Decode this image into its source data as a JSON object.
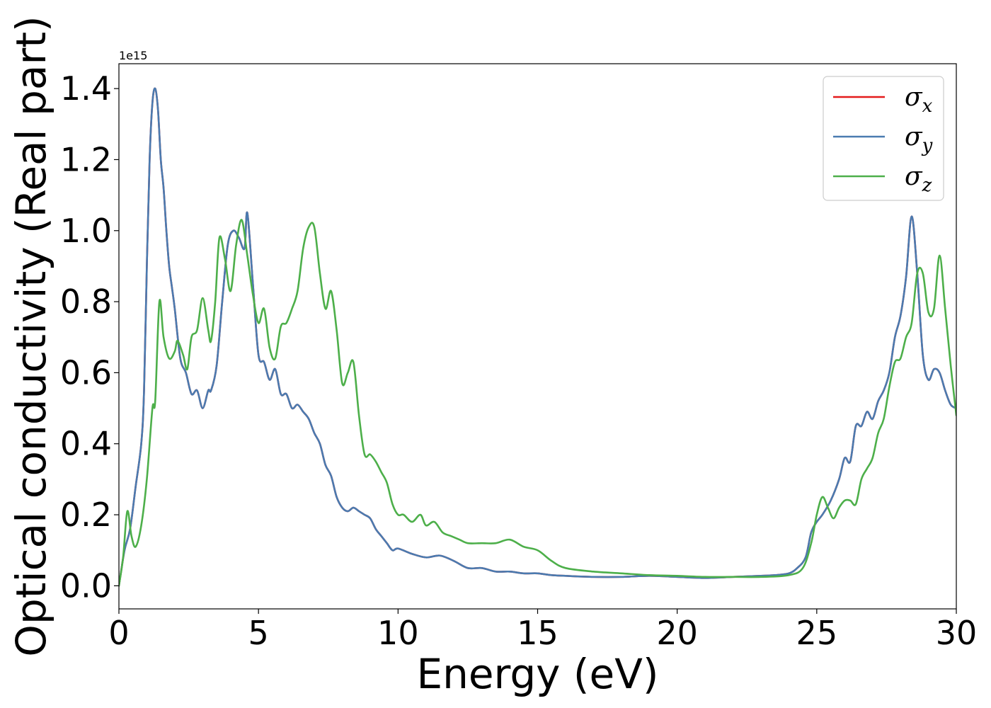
{
  "chart_data": {
    "type": "line",
    "xlabel": "Energy (eV)",
    "ylabel": "Optical conductivity (Real part)",
    "y_offset_label": "1e15",
    "xlim": [
      0,
      30
    ],
    "ylim": [
      -0.065,
      1.47
    ],
    "x_ticks": [
      0,
      5,
      10,
      15,
      20,
      25,
      30
    ],
    "y_ticks": [
      0.0,
      0.2,
      0.4,
      0.6,
      0.8,
      1.0,
      1.2,
      1.4
    ],
    "grid": false,
    "legend_position": "top-right",
    "series": [
      {
        "name": "σx",
        "legend_main": "σ",
        "legend_sub": "x",
        "color": "#e41a1c",
        "x": [
          0,
          0.2,
          0.4,
          0.6,
          0.8,
          0.9,
          1.0,
          1.1,
          1.2,
          1.3,
          1.4,
          1.5,
          1.6,
          1.7,
          1.8,
          1.9,
          2.0,
          2.2,
          2.4,
          2.6,
          2.8,
          3.0,
          3.2,
          3.3,
          3.5,
          3.7,
          3.9,
          4.1,
          4.3,
          4.5,
          4.6,
          4.8,
          5.0,
          5.2,
          5.4,
          5.6,
          5.8,
          6.0,
          6.2,
          6.4,
          6.6,
          6.8,
          7.0,
          7.2,
          7.4,
          7.6,
          7.8,
          8.0,
          8.2,
          8.4,
          8.6,
          8.8,
          9.0,
          9.2,
          9.4,
          9.6,
          9.8,
          10.0,
          10.5,
          11.0,
          11.5,
          12.0,
          12.5,
          13.0,
          13.5,
          14.0,
          14.5,
          15.0,
          15.5,
          16.0,
          17.0,
          18.0,
          19.0,
          20.0,
          21.0,
          22.0,
          23.0,
          23.5,
          24.0,
          24.3,
          24.6,
          24.8,
          25.0,
          25.2,
          25.5,
          25.8,
          26.0,
          26.2,
          26.4,
          26.6,
          26.8,
          27.0,
          27.2,
          27.4,
          27.6,
          27.8,
          28.0,
          28.2,
          28.4,
          28.6,
          28.8,
          29.0,
          29.2,
          29.4,
          29.6,
          29.8,
          30.0
        ],
        "y": [
          0.0,
          0.1,
          0.16,
          0.28,
          0.4,
          0.55,
          0.9,
          1.2,
          1.36,
          1.4,
          1.34,
          1.2,
          1.12,
          1.0,
          0.9,
          0.84,
          0.78,
          0.64,
          0.6,
          0.54,
          0.55,
          0.5,
          0.55,
          0.55,
          0.62,
          0.8,
          0.96,
          1.0,
          0.98,
          0.95,
          1.05,
          0.85,
          0.65,
          0.63,
          0.58,
          0.61,
          0.54,
          0.54,
          0.5,
          0.51,
          0.49,
          0.47,
          0.43,
          0.4,
          0.34,
          0.31,
          0.25,
          0.22,
          0.21,
          0.22,
          0.21,
          0.2,
          0.19,
          0.16,
          0.14,
          0.12,
          0.1,
          0.105,
          0.09,
          0.08,
          0.085,
          0.07,
          0.05,
          0.05,
          0.04,
          0.04,
          0.035,
          0.035,
          0.03,
          0.028,
          0.025,
          0.025,
          0.028,
          0.025,
          0.022,
          0.025,
          0.028,
          0.03,
          0.035,
          0.05,
          0.08,
          0.15,
          0.18,
          0.2,
          0.24,
          0.3,
          0.36,
          0.35,
          0.45,
          0.45,
          0.49,
          0.47,
          0.52,
          0.55,
          0.6,
          0.7,
          0.76,
          0.87,
          1.04,
          0.88,
          0.65,
          0.58,
          0.61,
          0.6,
          0.55,
          0.51,
          0.5
        ]
      },
      {
        "name": "σy",
        "legend_main": "σ",
        "legend_sub": "y",
        "color": "#4a7bb0",
        "x": [
          0,
          0.2,
          0.4,
          0.6,
          0.8,
          0.9,
          1.0,
          1.1,
          1.2,
          1.3,
          1.4,
          1.5,
          1.6,
          1.7,
          1.8,
          1.9,
          2.0,
          2.2,
          2.4,
          2.6,
          2.8,
          3.0,
          3.2,
          3.3,
          3.5,
          3.7,
          3.9,
          4.1,
          4.3,
          4.5,
          4.6,
          4.8,
          5.0,
          5.2,
          5.4,
          5.6,
          5.8,
          6.0,
          6.2,
          6.4,
          6.6,
          6.8,
          7.0,
          7.2,
          7.4,
          7.6,
          7.8,
          8.0,
          8.2,
          8.4,
          8.6,
          8.8,
          9.0,
          9.2,
          9.4,
          9.6,
          9.8,
          10.0,
          10.5,
          11.0,
          11.5,
          12.0,
          12.5,
          13.0,
          13.5,
          14.0,
          14.5,
          15.0,
          15.5,
          16.0,
          17.0,
          18.0,
          19.0,
          20.0,
          21.0,
          22.0,
          23.0,
          23.5,
          24.0,
          24.3,
          24.6,
          24.8,
          25.0,
          25.2,
          25.5,
          25.8,
          26.0,
          26.2,
          26.4,
          26.6,
          26.8,
          27.0,
          27.2,
          27.4,
          27.6,
          27.8,
          28.0,
          28.2,
          28.4,
          28.6,
          28.8,
          29.0,
          29.2,
          29.4,
          29.6,
          29.8,
          30.0
        ],
        "y": [
          0.0,
          0.1,
          0.16,
          0.28,
          0.4,
          0.55,
          0.9,
          1.2,
          1.36,
          1.4,
          1.34,
          1.2,
          1.12,
          1.0,
          0.9,
          0.84,
          0.78,
          0.64,
          0.6,
          0.54,
          0.55,
          0.5,
          0.55,
          0.55,
          0.62,
          0.8,
          0.96,
          1.0,
          0.98,
          0.95,
          1.05,
          0.85,
          0.65,
          0.63,
          0.58,
          0.61,
          0.54,
          0.54,
          0.5,
          0.51,
          0.49,
          0.47,
          0.43,
          0.4,
          0.34,
          0.31,
          0.25,
          0.22,
          0.21,
          0.22,
          0.21,
          0.2,
          0.19,
          0.16,
          0.14,
          0.12,
          0.1,
          0.105,
          0.09,
          0.08,
          0.085,
          0.07,
          0.05,
          0.05,
          0.04,
          0.04,
          0.035,
          0.035,
          0.03,
          0.028,
          0.025,
          0.025,
          0.028,
          0.025,
          0.022,
          0.025,
          0.028,
          0.03,
          0.035,
          0.05,
          0.08,
          0.15,
          0.18,
          0.2,
          0.24,
          0.3,
          0.36,
          0.35,
          0.45,
          0.45,
          0.49,
          0.47,
          0.52,
          0.55,
          0.6,
          0.7,
          0.76,
          0.87,
          1.04,
          0.88,
          0.65,
          0.58,
          0.61,
          0.6,
          0.55,
          0.51,
          0.5
        ]
      },
      {
        "name": "σz",
        "legend_main": "σ",
        "legend_sub": "z",
        "color": "#4daf4a",
        "x": [
          0,
          0.15,
          0.3,
          0.45,
          0.6,
          0.8,
          1.0,
          1.2,
          1.3,
          1.45,
          1.6,
          1.8,
          2.0,
          2.1,
          2.3,
          2.45,
          2.6,
          2.8,
          3.0,
          3.2,
          3.3,
          3.45,
          3.6,
          3.8,
          4.0,
          4.2,
          4.4,
          4.6,
          4.8,
          5.0,
          5.2,
          5.4,
          5.6,
          5.8,
          6.0,
          6.2,
          6.4,
          6.6,
          6.8,
          7.0,
          7.2,
          7.4,
          7.6,
          7.8,
          8.0,
          8.2,
          8.4,
          8.6,
          8.8,
          9.0,
          9.2,
          9.4,
          9.6,
          9.8,
          10.0,
          10.2,
          10.5,
          10.8,
          11.0,
          11.3,
          11.6,
          11.9,
          12.2,
          12.5,
          13.0,
          13.5,
          14.0,
          14.5,
          15.0,
          15.5,
          16.0,
          17.0,
          18.0,
          19.0,
          20.0,
          21.0,
          22.0,
          23.0,
          24.0,
          24.5,
          24.8,
          25.0,
          25.2,
          25.4,
          25.6,
          25.8,
          26.0,
          26.2,
          26.4,
          26.6,
          26.8,
          27.0,
          27.2,
          27.4,
          27.6,
          27.8,
          28.0,
          28.2,
          28.4,
          28.6,
          28.8,
          29.0,
          29.2,
          29.4,
          29.6,
          29.8,
          30.0
        ],
        "y": [
          0.0,
          0.08,
          0.21,
          0.14,
          0.11,
          0.17,
          0.3,
          0.5,
          0.52,
          0.8,
          0.7,
          0.64,
          0.66,
          0.69,
          0.65,
          0.61,
          0.7,
          0.72,
          0.81,
          0.72,
          0.69,
          0.8,
          0.98,
          0.92,
          0.83,
          0.96,
          1.03,
          0.93,
          0.82,
          0.74,
          0.78,
          0.67,
          0.64,
          0.73,
          0.74,
          0.78,
          0.83,
          0.95,
          1.01,
          1.01,
          0.88,
          0.78,
          0.83,
          0.72,
          0.57,
          0.6,
          0.63,
          0.48,
          0.37,
          0.37,
          0.35,
          0.32,
          0.29,
          0.23,
          0.2,
          0.2,
          0.18,
          0.2,
          0.17,
          0.18,
          0.15,
          0.14,
          0.13,
          0.12,
          0.12,
          0.12,
          0.13,
          0.11,
          0.1,
          0.07,
          0.05,
          0.04,
          0.035,
          0.03,
          0.028,
          0.025,
          0.025,
          0.025,
          0.03,
          0.05,
          0.12,
          0.2,
          0.25,
          0.22,
          0.19,
          0.22,
          0.24,
          0.24,
          0.23,
          0.3,
          0.33,
          0.36,
          0.43,
          0.47,
          0.56,
          0.63,
          0.64,
          0.7,
          0.74,
          0.88,
          0.88,
          0.77,
          0.78,
          0.93,
          0.78,
          0.62,
          0.48
        ]
      }
    ]
  }
}
